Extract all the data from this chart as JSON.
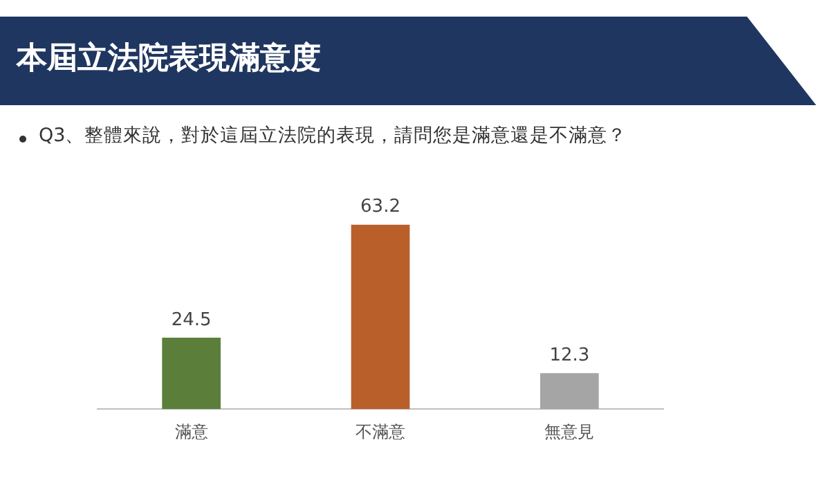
{
  "chart_data": {
    "type": "bar",
    "title": "本屆立法院表現滿意度",
    "subtitle": "Q3、整體來說，對於這屆立法院的表現，請問您是滿意還是不滿意？",
    "categories": [
      "滿意",
      "不滿意",
      "無意見"
    ],
    "values": [
      24.5,
      63.2,
      12.3
    ],
    "colors": [
      "#5b7f3b",
      "#b95f2a",
      "#a5a5a5"
    ],
    "data_labels": true,
    "grid": false,
    "legend": false,
    "tick_labels": "x"
  }
}
